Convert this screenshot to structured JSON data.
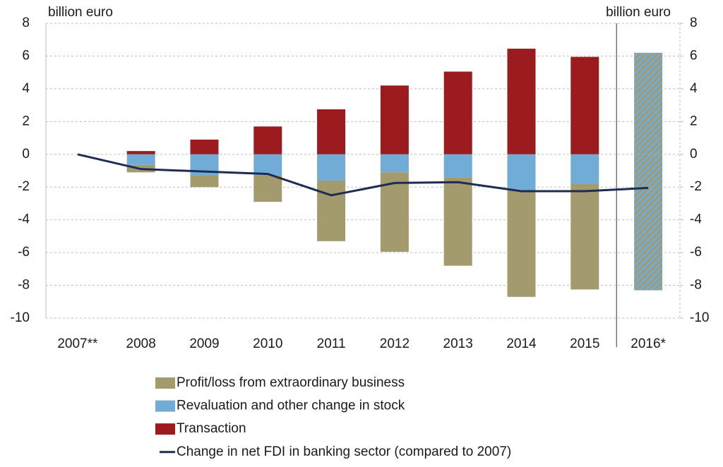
{
  "chart_data": {
    "type": "stacked-bar-line",
    "ylabel": "billion euro",
    "y2label": "billion euro",
    "categories": [
      "2007**",
      "2008",
      "2009",
      "2010",
      "2011",
      "2012",
      "2013",
      "2014",
      "2015",
      "2016*"
    ],
    "series": [
      {
        "name": "Transaction",
        "type": "bar",
        "color": "#9b1b1f",
        "values": [
          null,
          0.2,
          0.9,
          1.7,
          2.75,
          4.2,
          5.05,
          6.45,
          5.95,
          6.2
        ]
      },
      {
        "name": "Revaluation and other change in stock",
        "type": "bar",
        "color": "#71acd6",
        "values": [
          null,
          -0.65,
          -1.3,
          -1.3,
          -1.6,
          -1.1,
          -1.4,
          -2.2,
          -1.8,
          null
        ]
      },
      {
        "name": "Profit/loss from extraordinary business",
        "type": "bar",
        "color": "#a39a6e",
        "values": [
          null,
          -0.45,
          -0.7,
          -1.6,
          -3.7,
          -4.85,
          -5.4,
          -6.5,
          -6.45,
          -8.3
        ]
      },
      {
        "name": "Change in net FDI in banking sector (compared to 2007)",
        "type": "line",
        "color": "#1f2c52",
        "values": [
          0,
          -0.9,
          -1.05,
          -1.2,
          -2.5,
          -1.75,
          -1.7,
          -2.25,
          -2.25,
          -2.05
        ]
      }
    ],
    "hatched_last": true,
    "ylim": [
      -10,
      8
    ],
    "yticks": [
      -10,
      -8,
      -6,
      -4,
      -2,
      0,
      2,
      4,
      6,
      8
    ],
    "y2lim": [
      -10,
      8
    ],
    "y2ticks": [
      -10,
      -8,
      -6,
      -4,
      -2,
      0,
      2,
      4,
      6,
      8
    ],
    "grid": true
  }
}
